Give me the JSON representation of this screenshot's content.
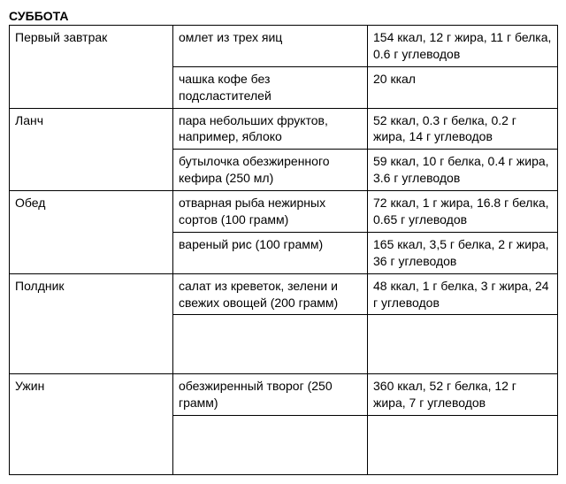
{
  "day_title": "СУББОТА",
  "meals": [
    {
      "name": "Первый завтрак",
      "items": [
        {
          "food": "омлет из трех яиц",
          "nutrition": "154 ккал, 12 г жира, 11 г белка, 0.6 г углеводов"
        },
        {
          "food": "чашка кофе без подсластителей",
          "nutrition": "20 ккал"
        }
      ]
    },
    {
      "name": "Ланч",
      "items": [
        {
          "food": "пара небольших фруктов, например, яблоко",
          "nutrition": "52 ккал, 0.3 г белка, 0.2 г жира, 14 г углеводов"
        },
        {
          "food": "бутылочка обезжиренного кефира (250 мл)",
          "nutrition": "59 ккал, 10 г белка, 0.4 г жира, 3.6 г углеводов"
        }
      ]
    },
    {
      "name": "Обед",
      "items": [
        {
          "food": "отварная рыба нежирных сортов (100 грамм)",
          "nutrition": "72 ккал, 1 г жира, 16.8 г белка, 0.65 г углеводов"
        },
        {
          "food": "вареный рис (100 грамм)",
          "nutrition": "165 ккал, 3,5 г белка, 2 г жира, 36 г углеводов"
        }
      ]
    },
    {
      "name": "Полдник",
      "items": [
        {
          "food": "салат из креветок, зелени и свежих овощей (200 грамм)",
          "nutrition": "48 ккал, 1 г белка, 3 г жира, 24 г углеводов"
        }
      ],
      "trailing_blank": true
    },
    {
      "name": "Ужин",
      "items": [
        {
          "food": "обезжиренный творог (250 грамм)",
          "nutrition": "360 ккал, 52 г белка, 12 г жира, 7 г углеводов"
        }
      ],
      "trailing_blank": true
    }
  ]
}
